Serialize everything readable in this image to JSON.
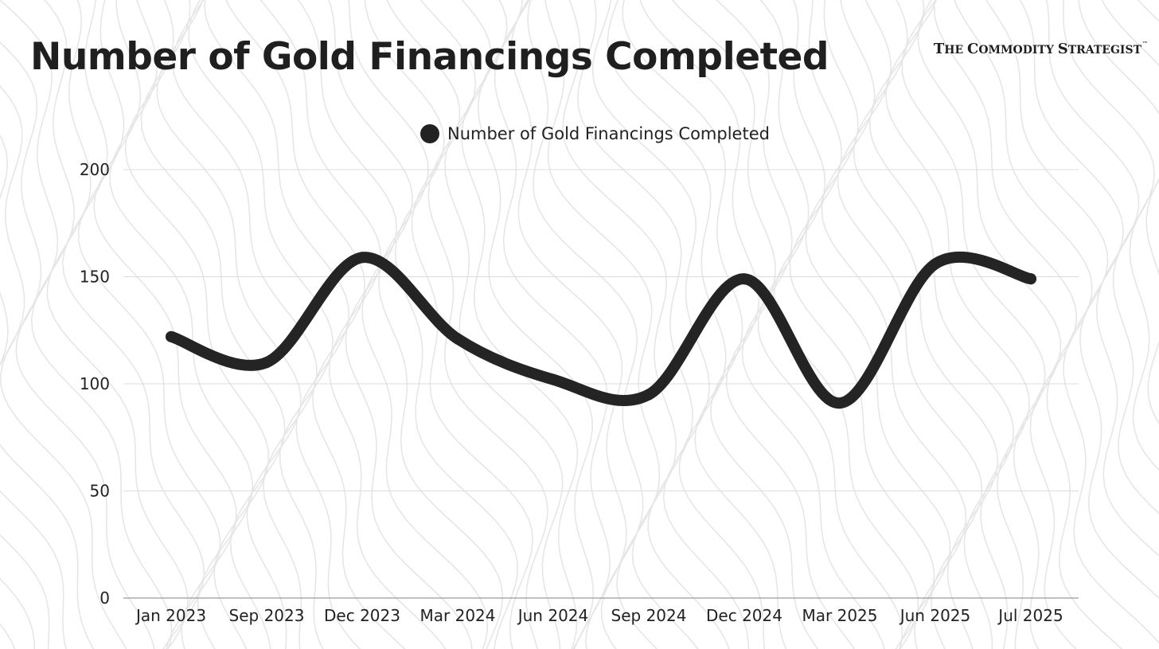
{
  "header": {
    "title": "Number of Gold Financings Completed",
    "brand_parts": [
      "T",
      "HE ",
      "C",
      "OMMODITY ",
      "S",
      "TRATEGIST"
    ],
    "brand_mark": "™"
  },
  "colors": {
    "line": "#242424",
    "grid": "#dcdcdc",
    "background_contours": "#e6e6e6"
  },
  "chart_data": {
    "type": "line",
    "title": "Number of Gold Financings Completed",
    "xlabel": "",
    "ylabel": "",
    "categories": [
      "Jan 2023",
      "Sep 2023",
      "Dec 2023",
      "Mar 2024",
      "Jun 2024",
      "Sep 2024",
      "Dec 2024",
      "Mar 2025",
      "Jun 2025",
      "Jul 2025"
    ],
    "series": [
      {
        "name": "Number of Gold Financings Completed",
        "values": [
          122,
          110,
          159,
          121,
          102,
          95,
          149,
          91,
          156,
          149
        ]
      }
    ],
    "ylim": [
      0,
      200
    ],
    "yticks": [
      0,
      50,
      100,
      150,
      200
    ],
    "grid": true,
    "smooth": true,
    "legend_position": "top-center"
  }
}
